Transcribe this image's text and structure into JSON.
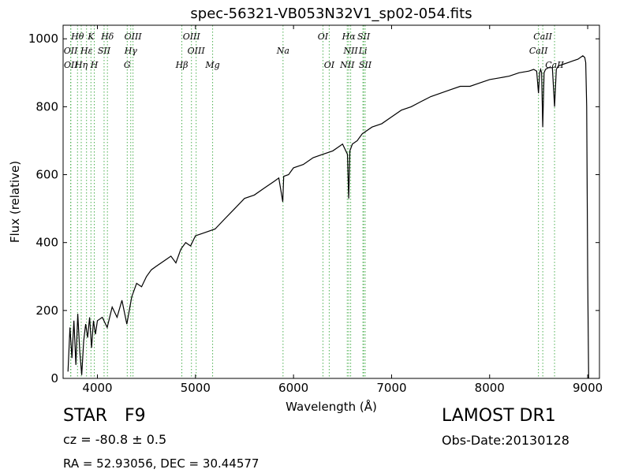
{
  "chart_data": {
    "type": "line",
    "title": "spec-56321-VB053N32V1_sp02-054.fits",
    "xlabel": "Wavelength (Å)",
    "ylabel": "Flux (relative)",
    "xlim": [
      3650,
      9120
    ],
    "ylim": [
      0,
      1040
    ],
    "xticks": [
      4000,
      5000,
      6000,
      7000,
      8000,
      9000
    ],
    "yticks": [
      0,
      200,
      400,
      600,
      800,
      1000
    ],
    "grid": false,
    "colors": {
      "spectrum": "#000000",
      "lines": "#4caf50"
    },
    "series": [
      {
        "x": [
          3700,
          3720,
          3740,
          3760,
          3780,
          3800,
          3820,
          3840,
          3860,
          3880,
          3900,
          3920,
          3940,
          3960,
          3980,
          4000,
          4050,
          4100,
          4150,
          4200,
          4250,
          4300,
          4350,
          4400,
          4450,
          4500,
          4550,
          4600,
          4650,
          4700,
          4750,
          4800,
          4850,
          4900,
          4950,
          5000,
          5100,
          5200,
          5300,
          5400,
          5500,
          5600,
          5700,
          5800,
          5850,
          5890,
          5900,
          5950,
          6000,
          6100,
          6200,
          6300,
          6400,
          6450,
          6500,
          6550,
          6563,
          6575,
          6600,
          6650,
          6700,
          6800,
          6900,
          7000,
          7100,
          7200,
          7300,
          7400,
          7500,
          7600,
          7700,
          7800,
          7900,
          8000,
          8100,
          8200,
          8300,
          8400,
          8450,
          8480,
          8498,
          8510,
          8520,
          8530,
          8542,
          8555,
          8570,
          8600,
          8640,
          8662,
          8680,
          8700,
          8750,
          8800,
          8850,
          8900,
          8950,
          8970,
          8980,
          8990,
          9000,
          9010
        ],
        "y": [
          20,
          150,
          60,
          170,
          40,
          190,
          80,
          10,
          110,
          160,
          120,
          180,
          90,
          170,
          130,
          170,
          180,
          150,
          210,
          180,
          230,
          160,
          240,
          280,
          270,
          300,
          320,
          330,
          340,
          350,
          360,
          340,
          380,
          400,
          390,
          420,
          430,
          440,
          470,
          500,
          530,
          540,
          560,
          580,
          590,
          520,
          595,
          600,
          620,
          630,
          650,
          660,
          670,
          680,
          690,
          660,
          530,
          670,
          690,
          700,
          720,
          740,
          750,
          770,
          790,
          800,
          815,
          830,
          840,
          850,
          860,
          860,
          870,
          880,
          885,
          890,
          900,
          905,
          910,
          905,
          840,
          900,
          910,
          900,
          740,
          900,
          910,
          915,
          915,
          800,
          910,
          920,
          925,
          930,
          935,
          940,
          950,
          945,
          930,
          800,
          300,
          0
        ]
      }
    ],
    "line_markers": [
      {
        "label": "Hθ",
        "x": 3797,
        "row": 1
      },
      {
        "label": "K",
        "x": 3934,
        "row": 1
      },
      {
        "label": "Hδ",
        "x": 4102,
        "row": 1
      },
      {
        "label": "OIII",
        "x": 4363,
        "row": 1
      },
      {
        "label": "OIII",
        "x": 4959,
        "row": 1
      },
      {
        "label": "OI",
        "x": 6300,
        "row": 1
      },
      {
        "label": "Hα",
        "x": 6563,
        "row": 1
      },
      {
        "label": "SII",
        "x": 6716,
        "row": 1
      },
      {
        "label": "CaII",
        "x": 8542,
        "row": 1
      },
      {
        "label": "OII",
        "x": 3727,
        "row": 2
      },
      {
        "label": "Hε",
        "x": 3889,
        "row": 2
      },
      {
        "label": "SII",
        "x": 4068,
        "row": 2
      },
      {
        "label": "Hγ",
        "x": 4340,
        "row": 2
      },
      {
        "label": "OIII",
        "x": 5007,
        "row": 2
      },
      {
        "label": "Na",
        "x": 5893,
        "row": 2
      },
      {
        "label": "NII",
        "x": 6583,
        "row": 2
      },
      {
        "label": "Li",
        "x": 6708,
        "row": 2
      },
      {
        "label": "CaII",
        "x": 8498,
        "row": 2
      },
      {
        "label": "OII",
        "x": 3729,
        "row": 3
      },
      {
        "label": "Hη",
        "x": 3835,
        "row": 3
      },
      {
        "label": "H",
        "x": 3968,
        "row": 3
      },
      {
        "label": "G",
        "x": 4304,
        "row": 3
      },
      {
        "label": "Hβ",
        "x": 4861,
        "row": 3
      },
      {
        "label": "Mg",
        "x": 5175,
        "row": 3
      },
      {
        "label": "OI",
        "x": 6364,
        "row": 3
      },
      {
        "label": "NII",
        "x": 6548,
        "row": 3
      },
      {
        "label": "SII",
        "x": 6731,
        "row": 3
      },
      {
        "label": "CaII",
        "x": 8662,
        "row": 3
      }
    ]
  },
  "footer": {
    "class_label": "STAR",
    "subclass": "F9",
    "survey": "LAMOST DR1",
    "cz": "cz = -80.8 ± 0.5",
    "obs_date": "Obs-Date:20130128",
    "coords": "RA = 52.93056, DEC = 30.44577"
  }
}
